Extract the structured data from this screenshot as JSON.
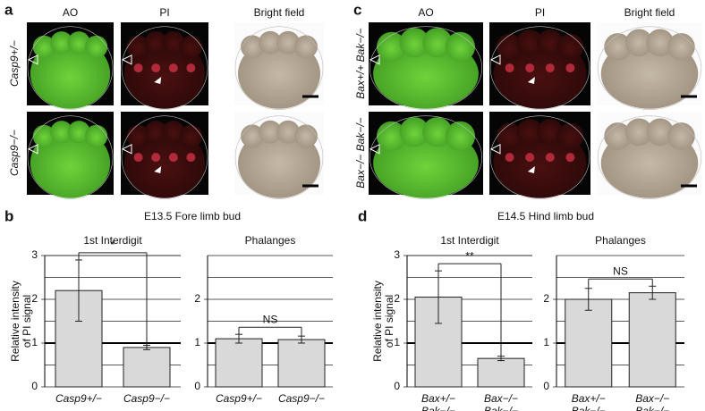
{
  "panels": [
    {
      "letter": "a",
      "columns": [
        "AO",
        "PI",
        "Bright field"
      ],
      "rows": [
        "Casp9+/−",
        "Casp9−/−"
      ]
    },
    {
      "letter": "c",
      "columns": [
        "AO",
        "PI",
        "Bright field"
      ],
      "rows": [
        "Bax+/+ Bak−/−",
        "Bax−/− Bak−/−"
      ]
    }
  ],
  "chart_groups": [
    {
      "letter": "b",
      "title": "E13.5 Fore limb bud"
    },
    {
      "letter": "d",
      "title": "E14.5 Hind limb bud"
    }
  ],
  "chart_data": [
    {
      "type": "bar",
      "subtitle": "1st Interdigit",
      "ylabel": [
        "Relative intensity",
        "of PI signal"
      ],
      "categories": [
        [
          "Casp9+/−"
        ],
        [
          "Casp9−/−"
        ]
      ],
      "values": [
        2.2,
        0.9
      ],
      "errors": [
        0.7,
        0.05
      ],
      "color": "#d9d9d9",
      "ylim": [
        0,
        3
      ],
      "yticks": [
        0,
        1,
        2,
        3
      ],
      "grid": true,
      "hline": 1,
      "significance": "*"
    },
    {
      "type": "bar",
      "subtitle": "Phalanges",
      "categories": [
        [
          "Casp9+/−"
        ],
        [
          "Casp9−/−"
        ]
      ],
      "values": [
        1.1,
        1.08
      ],
      "errors": [
        0.1,
        0.08
      ],
      "color": "#d9d9d9",
      "ylim": [
        0,
        3
      ],
      "yticks": [
        0,
        1,
        2
      ],
      "grid": true,
      "hline": 1,
      "significance": "NS"
    },
    {
      "type": "bar",
      "subtitle": "1st Interdigit",
      "ylabel": [
        "Relative intensity",
        "of PI signal"
      ],
      "categories": [
        [
          "Bax+/−",
          "Bak−/−"
        ],
        [
          "Bax−/−",
          "Bak−/−"
        ]
      ],
      "values": [
        2.05,
        0.65
      ],
      "errors": [
        0.6,
        0.05
      ],
      "color": "#d9d9d9",
      "ylim": [
        0,
        3
      ],
      "yticks": [
        0,
        1,
        2,
        3
      ],
      "grid": true,
      "hline": 1,
      "significance": "**"
    },
    {
      "type": "bar",
      "subtitle": "Phalanges",
      "categories": [
        [
          "Bax+/−",
          "Bak−/−"
        ],
        [
          "Bax−/−",
          "Bak−/−"
        ]
      ],
      "values": [
        2.0,
        2.15
      ],
      "errors": [
        0.25,
        0.15
      ],
      "color": "#d9d9d9",
      "ylim": [
        0,
        3
      ],
      "yticks": [
        0,
        1,
        2
      ],
      "grid": true,
      "hline": 1,
      "significance": "NS"
    }
  ]
}
